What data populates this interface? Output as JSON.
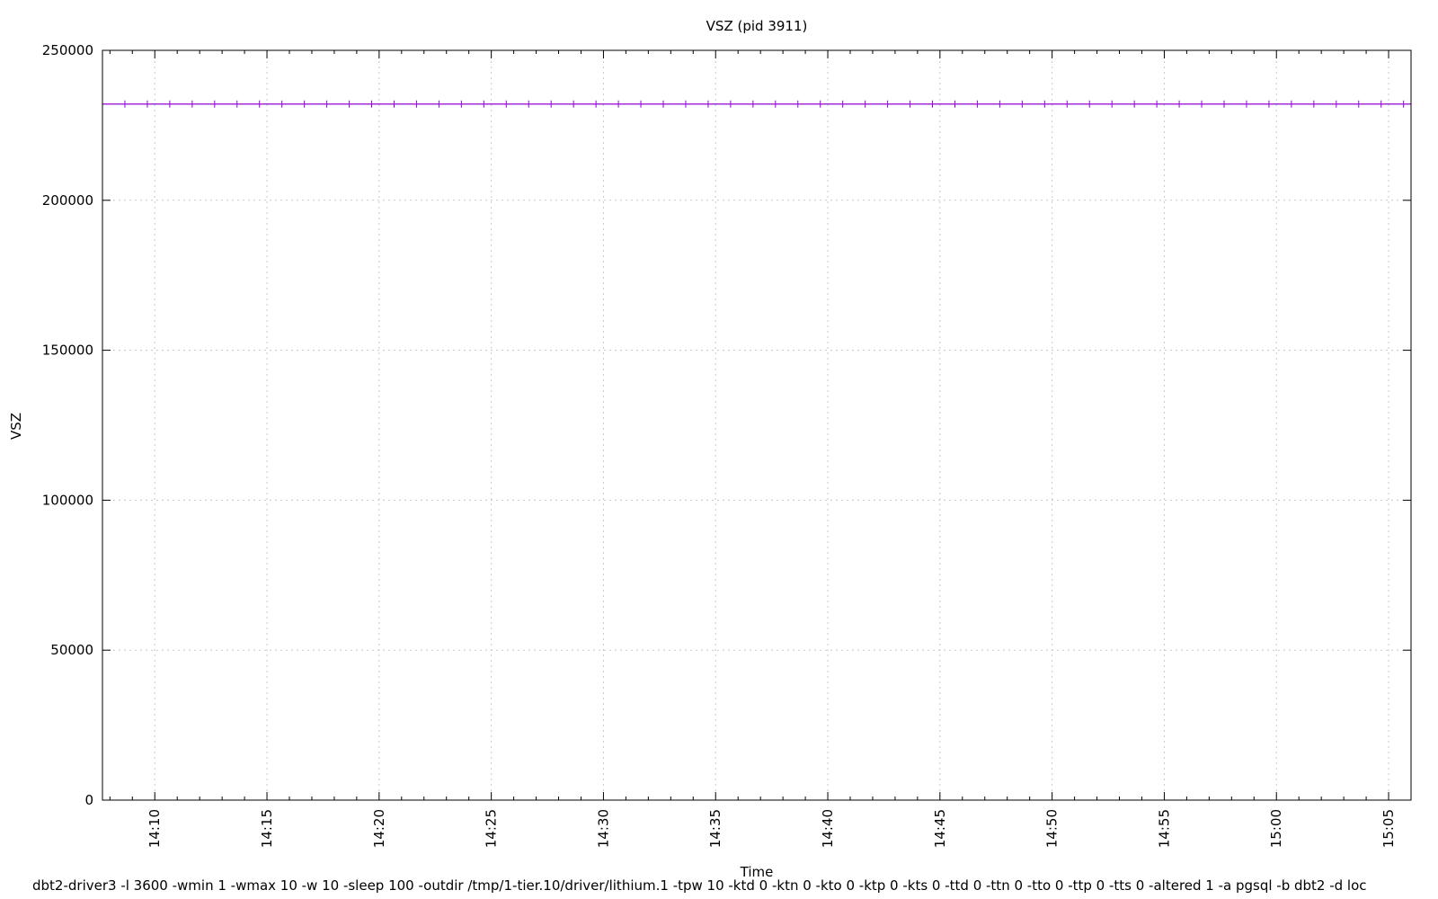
{
  "chart_data": {
    "type": "line",
    "title": "VSZ (pid 3911)",
    "xlabel": "Time",
    "ylabel": "VSZ",
    "ylim": [
      0,
      250000
    ],
    "yticks": [
      0,
      50000,
      100000,
      150000,
      200000,
      250000
    ],
    "ytick_labels": [
      "0",
      "50000",
      "100000",
      "150000",
      "200000",
      "250000"
    ],
    "xlim": [
      "14:07:40",
      "15:06:00"
    ],
    "xticks": [
      "14:10",
      "14:15",
      "14:20",
      "14:25",
      "14:30",
      "14:35",
      "14:40",
      "14:45",
      "14:50",
      "14:55",
      "15:00",
      "15:05"
    ],
    "grid": true,
    "series": [
      {
        "color": "#9400d3",
        "x_start": "14:07:40",
        "x_end": "15:06:00",
        "sample_interval_minutes": 1,
        "value": 232100
      }
    ]
  },
  "caption": "dbt2-driver3 -l 3600 -wmin 1 -wmax 10 -w 10 -sleep 100 -outdir /tmp/1-tier.10/driver/lithium.1 -tpw 10 -ktd 0 -ktn 0 -kto 0 -ktp 0 -kts 0 -ttd 0 -ttn 0 -tto 0 -ttp 0 -tts 0 -altered 1 -a pgsql -b dbt2 -d loc"
}
